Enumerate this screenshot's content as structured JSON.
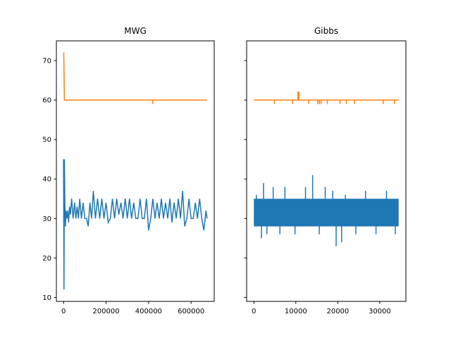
{
  "chart_data": [
    {
      "type": "line",
      "title": "MWG",
      "xlim": [
        -33750,
        708750
      ],
      "ylim": [
        9.0,
        75.0
      ],
      "xticks": [
        0,
        200000,
        400000,
        600000
      ],
      "xtick_labels": [
        "0",
        "200000",
        "400000",
        "600000"
      ],
      "yticks": [
        10,
        20,
        30,
        40,
        50,
        60,
        70
      ],
      "ytick_labels": [
        "10",
        "20",
        "30",
        "40",
        "50",
        "60",
        "70"
      ],
      "grid": false,
      "series": [
        {
          "color": "#ff7f0e",
          "x": [
            0,
            1000,
            4000,
            6000,
            420000,
            420000,
            420000,
            675000
          ],
          "y": [
            72,
            72,
            60,
            60,
            60,
            59,
            60,
            60
          ]
        },
        {
          "color": "#1f77b4",
          "x": [
            0,
            2000,
            4000,
            6000,
            9000,
            12000,
            16000,
            20000,
            24000,
            28000,
            32000,
            38000,
            45000,
            52000,
            58000,
            64000,
            70000,
            76000,
            84000,
            92000,
            100000,
            108000,
            116000,
            124000,
            132000,
            140000,
            150000,
            160000,
            170000,
            180000,
            190000,
            200000,
            210000,
            220000,
            230000,
            240000,
            250000,
            260000,
            270000,
            280000,
            290000,
            300000,
            310000,
            320000,
            330000,
            340000,
            350000,
            360000,
            370000,
            380000,
            390000,
            400000,
            410000,
            420000,
            430000,
            440000,
            450000,
            460000,
            470000,
            480000,
            490000,
            500000,
            510000,
            520000,
            530000,
            540000,
            550000,
            560000,
            570000,
            580000,
            590000,
            600000,
            610000,
            620000,
            630000,
            640000,
            650000,
            660000,
            670000,
            675000
          ],
          "y": [
            45,
            12,
            45,
            34,
            28,
            32,
            30,
            32,
            29,
            33,
            31,
            35,
            30,
            34,
            30,
            33,
            30,
            35,
            30,
            34,
            30,
            30,
            28,
            34,
            30,
            37,
            30,
            35,
            30,
            35,
            30,
            34,
            29,
            30,
            35,
            30,
            35,
            31,
            34,
            30,
            35,
            30,
            35,
            30,
            34,
            30,
            30,
            35,
            30,
            30,
            35,
            27,
            30,
            35,
            30,
            34,
            30,
            35,
            30,
            34,
            30,
            35,
            29,
            34,
            30,
            35,
            30,
            37,
            28,
            30,
            35,
            30,
            30,
            34,
            30,
            35,
            30,
            27,
            32,
            30
          ]
        }
      ]
    },
    {
      "type": "line",
      "title": "Gibbs",
      "xlim": [
        -1725,
        36225
      ],
      "ylim": [
        9.0,
        75.0
      ],
      "xticks": [
        0,
        10000,
        20000,
        30000
      ],
      "xtick_labels": [
        "0",
        "10000",
        "20000",
        "30000"
      ],
      "yticks": [
        10,
        20,
        30,
        40,
        50,
        60,
        70
      ],
      "ytick_labels": [
        "",
        "",
        "",
        "",
        "",
        "",
        ""
      ],
      "grid": false,
      "series": [
        {
          "color": "#ff7f0e",
          "x": [
            0,
            4900,
            4900,
            4900,
            9200,
            9200,
            9200,
            10500,
            10500,
            10700,
            10700,
            13000,
            13000,
            13000,
            15200,
            15200,
            15200,
            15600,
            15600,
            15600,
            16000,
            16000,
            16000,
            17500,
            17500,
            17500,
            20500,
            20500,
            20500,
            22000,
            22000,
            22000,
            24000,
            24000,
            24000,
            30800,
            30800,
            30800,
            33500,
            33500,
            33500,
            34500
          ],
          "y": [
            60,
            60,
            59,
            60,
            60,
            59,
            60,
            60,
            62,
            62,
            60,
            60,
            59,
            60,
            60,
            59,
            60,
            60,
            59,
            60,
            60,
            59,
            60,
            60,
            59,
            60,
            60,
            59,
            60,
            60,
            59,
            60,
            60,
            59,
            60,
            60,
            59,
            60,
            60,
            59,
            60,
            60
          ]
        },
        {
          "color": "#1f77b4",
          "x": [
            0,
            34500
          ],
          "y": [
            30,
            30
          ],
          "band": {
            "low": 28,
            "high": 35
          },
          "spikes": [
            {
              "x": 600,
              "y": 36
            },
            {
              "x": 1800,
              "y": 25
            },
            {
              "x": 2300,
              "y": 39
            },
            {
              "x": 3100,
              "y": 26
            },
            {
              "x": 4600,
              "y": 38
            },
            {
              "x": 6200,
              "y": 26
            },
            {
              "x": 7400,
              "y": 38
            },
            {
              "x": 9800,
              "y": 26
            },
            {
              "x": 12300,
              "y": 38
            },
            {
              "x": 14000,
              "y": 41
            },
            {
              "x": 15600,
              "y": 26
            },
            {
              "x": 17000,
              "y": 38
            },
            {
              "x": 18800,
              "y": 37
            },
            {
              "x": 19600,
              "y": 23
            },
            {
              "x": 20900,
              "y": 24
            },
            {
              "x": 21800,
              "y": 36
            },
            {
              "x": 24300,
              "y": 26
            },
            {
              "x": 26600,
              "y": 37
            },
            {
              "x": 29100,
              "y": 26
            },
            {
              "x": 31600,
              "y": 37
            },
            {
              "x": 33700,
              "y": 26
            }
          ]
        }
      ]
    }
  ]
}
